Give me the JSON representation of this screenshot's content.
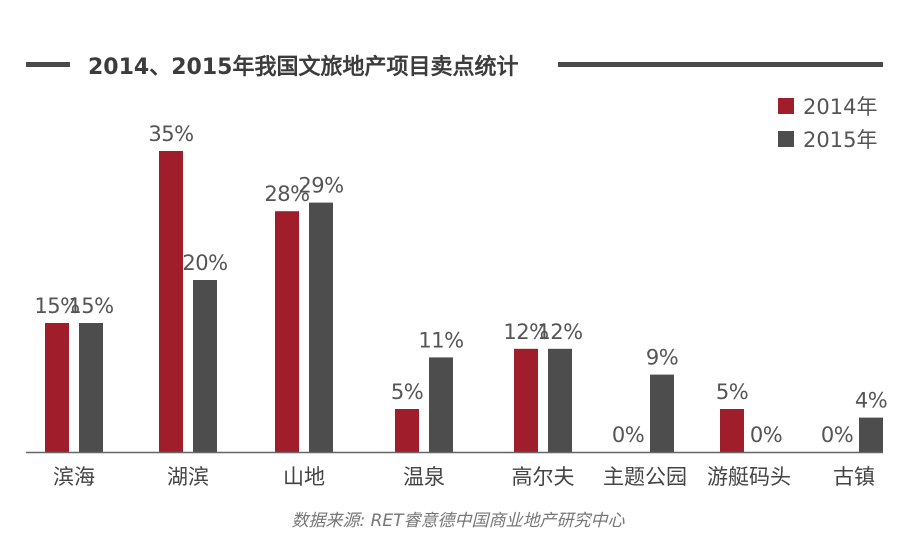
{
  "title": "2014、2015年我国文旅地产项目卖点统计",
  "source": "数据来源: RET睿意德中国商业地产研究中心",
  "colors": {
    "2014年": "#a01d2c",
    "2015年": "#4d4d4d",
    "axis": "#666666",
    "text": "#555555"
  },
  "chart_data": {
    "type": "bar",
    "title": "2014、2015年我国文旅地产项目卖点统计",
    "xlabel": "",
    "ylabel": "",
    "categories": [
      "滨海",
      "湖滨",
      "山地",
      "温泉",
      "高尔夫",
      "主题公园",
      "游艇码头",
      "古镇"
    ],
    "series": [
      {
        "name": "2014年",
        "values": [
          15,
          35,
          28,
          5,
          12,
          0,
          5,
          0
        ],
        "labels": [
          "15%",
          "35%",
          "28%",
          "5%",
          "12%",
          "0%",
          "5%",
          "0%"
        ]
      },
      {
        "name": "2015年",
        "values": [
          15,
          20,
          29,
          11,
          12,
          9,
          0,
          4
        ],
        "labels": [
          "15%",
          "20%",
          "29%",
          "11%",
          "12%",
          "9%",
          "0%",
          "4%"
        ]
      }
    ],
    "ylim": [
      0,
      35
    ],
    "grid": false,
    "legend_position": "top-right"
  }
}
